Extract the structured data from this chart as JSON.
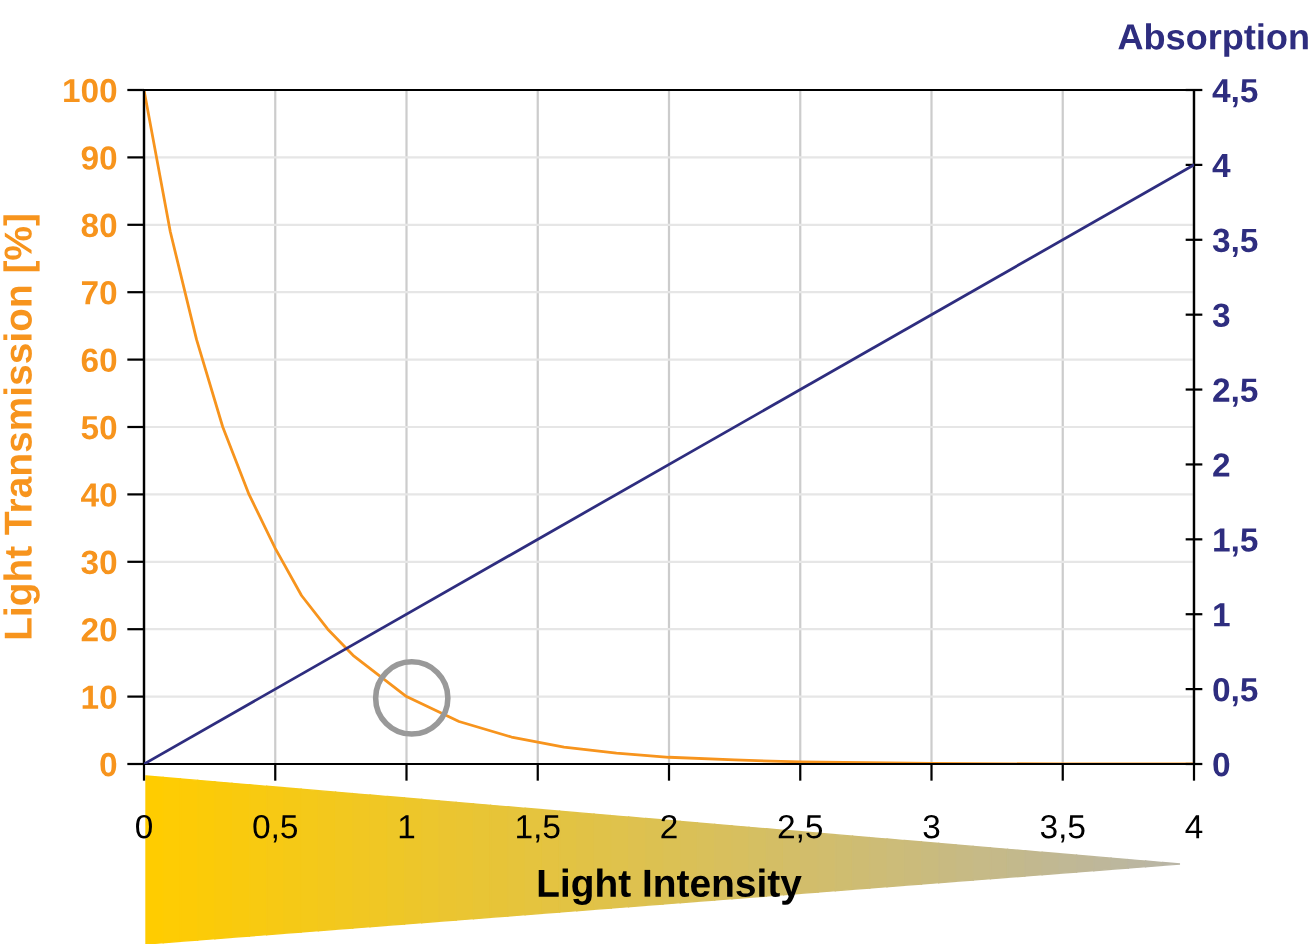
{
  "chart_data": {
    "type": "line",
    "xlabel": "Light Intensity",
    "ylabel": "Light Transmission [%]",
    "y2label": "Absorption",
    "xlim": [
      0,
      4
    ],
    "xticks": [
      0,
      {
        "value": 0.5,
        "label": "0,5"
      },
      1,
      {
        "value": 1.5,
        "label": "1,5"
      },
      2,
      {
        "value": 2.5,
        "label": "2,5"
      },
      3,
      {
        "value": 3.5,
        "label": "3,5"
      },
      4
    ],
    "ylim": [
      0,
      100
    ],
    "yticks": [
      0,
      10,
      20,
      30,
      40,
      50,
      60,
      70,
      80,
      90,
      100
    ],
    "y2lim": [
      0,
      4.5
    ],
    "y2ticks": [
      0,
      {
        "value": 0.5,
        "label": "0,5"
      },
      1,
      {
        "value": 1.5,
        "label": "1,5"
      },
      2,
      {
        "value": 2.5,
        "label": "2,5"
      },
      3,
      {
        "value": 3.5,
        "label": "3,5"
      },
      4,
      {
        "value": 4.5,
        "label": "4,5"
      }
    ],
    "grid": true,
    "legend": false,
    "series": [
      {
        "color": "#f7941d",
        "x": [
          0,
          0.1,
          0.2,
          0.3,
          0.4,
          0.5,
          0.6,
          0.7,
          0.8,
          0.9,
          1,
          1.2,
          1.4,
          1.6,
          1.8,
          2,
          2.25,
          2.5,
          3,
          3.5,
          4
        ],
        "values": [
          100,
          79,
          63,
          50,
          40,
          32,
          25,
          20,
          16,
          13,
          10,
          6.3,
          4,
          2.5,
          1.6,
          1,
          0.6,
          0.3,
          0.1,
          0,
          0
        ]
      },
      {
        "color": "#2e2d7f",
        "axis": "y2",
        "x": [
          0,
          4
        ],
        "values": [
          0,
          4
        ]
      },
      {
        "type": "scatter",
        "color": "#999999",
        "marker": "circle",
        "x": [
          1.02
        ],
        "values": [
          9.8
        ]
      }
    ]
  }
}
